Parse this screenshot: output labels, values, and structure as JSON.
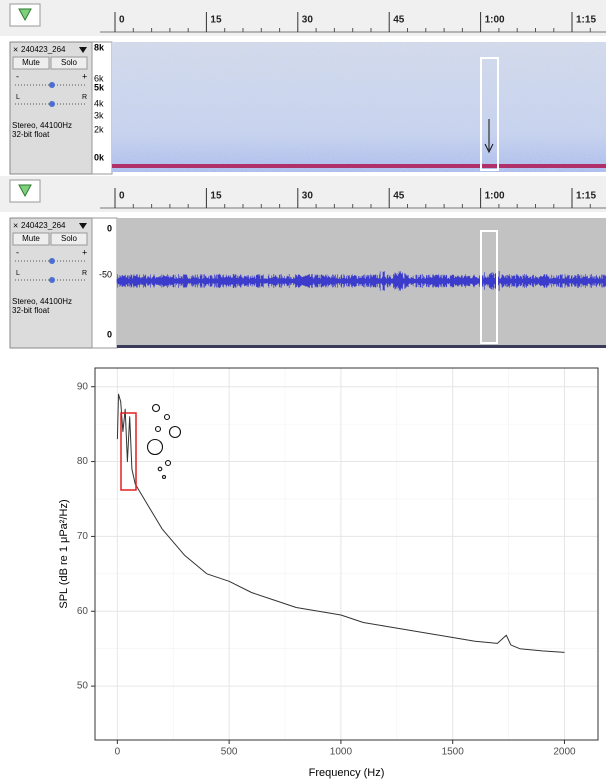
{
  "audacity_panels": [
    {
      "ruler_labels": [
        "0",
        "15",
        "30",
        "45",
        "1:00",
        "1:15"
      ],
      "track": {
        "name": "240423_264",
        "mute": "Mute",
        "solo": "Solo",
        "gain_minus": "-",
        "gain_plus": "+",
        "pan_left": "L",
        "pan_right": "R",
        "info": [
          "Stereo, 44100Hz",
          "32-bit float"
        ],
        "axis_labels": [
          "8k",
          "6k",
          "5k",
          "4k",
          "3k",
          "2k",
          "0k"
        ]
      }
    },
    {
      "ruler_labels": [
        "0",
        "15",
        "30",
        "45",
        "1:00",
        "1:15"
      ],
      "track": {
        "name": "240423_264",
        "mute": "Mute",
        "solo": "Solo",
        "gain_minus": "-",
        "gain_plus": "+",
        "pan_left": "L",
        "pan_right": "R",
        "info": [
          "Stereo, 44100Hz",
          "32-bit float"
        ],
        "axis_labels": [
          "0",
          "-50",
          "0"
        ]
      }
    }
  ],
  "chart_data": {
    "type": "line",
    "x_label": "Frequency (Hz)",
    "y_label": "SPL (dB re 1 μPa²/Hz)",
    "x": [
      0,
      5,
      15,
      25,
      35,
      45,
      55,
      65,
      80,
      100,
      130,
      200,
      300,
      400,
      500,
      600,
      700,
      800,
      900,
      1000,
      1100,
      1200,
      1300,
      1400,
      1500,
      1600,
      1700,
      1740,
      1760,
      1800,
      1900,
      2000
    ],
    "values": [
      83,
      89,
      88,
      84,
      87,
      80,
      86,
      79,
      77,
      76,
      74.5,
      71,
      67.5,
      65,
      64,
      62.5,
      61.5,
      60.5,
      60,
      59.5,
      58.5,
      58,
      57.5,
      57,
      56.5,
      56,
      55.7,
      56.8,
      55.5,
      55,
      54.7,
      54.5
    ],
    "color": "#333333",
    "xlim": [
      -100,
      2150
    ],
    "ylim": [
      42.8,
      92.5
    ],
    "xticks": [
      0,
      500,
      1000,
      1500,
      2000
    ],
    "yticks": [
      50,
      60,
      70,
      80,
      90
    ],
    "grid": true
  }
}
